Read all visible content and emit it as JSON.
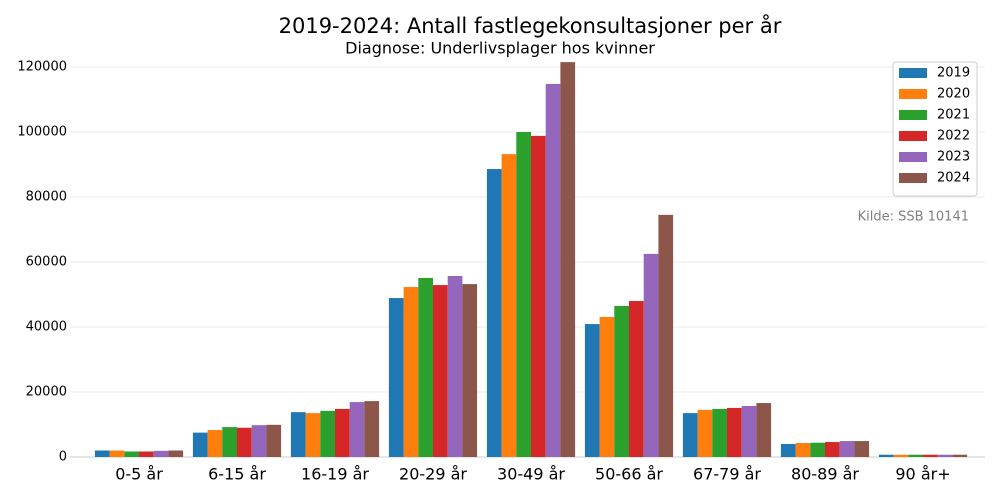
{
  "chart_data": {
    "type": "bar",
    "title": "2019-2024: Antall fastlegekonsultasjoner per år",
    "subtitle": "Diagnose: Underlivsplager hos kvinner",
    "annotation": "Kilde: SSB 10141",
    "categories": [
      "0-5 år",
      "6-15 år",
      "16-19 år",
      "20-29 år",
      "30-49 år",
      "50-66 år",
      "67-79 år",
      "80-89 år",
      "90 år+"
    ],
    "series": [
      {
        "name": "2019",
        "color": "#1f77b4",
        "values": [
          2000,
          7500,
          13800,
          48900,
          88600,
          40900,
          13500,
          4000,
          700
        ]
      },
      {
        "name": "2020",
        "color": "#ff7f0e",
        "values": [
          2000,
          8300,
          13500,
          52300,
          93200,
          43100,
          14500,
          4300,
          700
        ]
      },
      {
        "name": "2021",
        "color": "#2ca02c",
        "values": [
          1700,
          9200,
          14200,
          55100,
          100000,
          46500,
          14800,
          4400,
          700
        ]
      },
      {
        "name": "2022",
        "color": "#d62728",
        "values": [
          1700,
          9000,
          14800,
          52900,
          98800,
          48000,
          15100,
          4600,
          700
        ]
      },
      {
        "name": "2023",
        "color": "#9467bd",
        "values": [
          1900,
          9800,
          16900,
          55700,
          114800,
          62500,
          15700,
          4900,
          700
        ]
      },
      {
        "name": "2024",
        "color": "#8c564b",
        "values": [
          2000,
          9900,
          17200,
          53200,
          121500,
          74500,
          16600,
          4900,
          700
        ]
      }
    ],
    "ylim": [
      0,
      120000
    ],
    "yticks": [
      0,
      20000,
      40000,
      60000,
      80000,
      100000,
      120000
    ],
    "grid": true,
    "legend": "upper right"
  }
}
